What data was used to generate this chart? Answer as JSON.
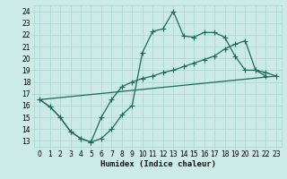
{
  "xlabel": "Humidex (Indice chaleur)",
  "bg_color": "#cceae6",
  "grid_color": "#a8d4d0",
  "line_color": "#1a6b5a",
  "xlim": [
    -0.5,
    23.5
  ],
  "ylim": [
    12.5,
    24.5
  ],
  "xticks": [
    0,
    1,
    2,
    3,
    4,
    5,
    6,
    7,
    8,
    9,
    10,
    11,
    12,
    13,
    14,
    15,
    16,
    17,
    18,
    19,
    20,
    21,
    22,
    23
  ],
  "yticks": [
    13,
    14,
    15,
    16,
    17,
    18,
    19,
    20,
    21,
    22,
    23,
    24
  ],
  "line1_x": [
    0,
    1,
    2,
    3,
    4,
    5,
    6,
    7,
    8,
    9,
    10,
    11,
    12,
    13,
    14,
    15,
    16,
    17,
    18,
    19,
    20,
    21,
    22
  ],
  "line1_y": [
    16.5,
    15.9,
    15.0,
    13.8,
    13.2,
    12.9,
    13.2,
    14.0,
    15.2,
    16.0,
    20.5,
    22.3,
    22.5,
    24.0,
    21.9,
    21.8,
    22.2,
    22.2,
    21.8,
    20.2,
    19.0,
    19.0,
    18.5
  ],
  "line2_x": [
    0,
    1,
    2,
    3,
    4,
    5,
    6,
    7,
    8,
    9,
    10,
    11,
    12,
    13,
    14,
    15,
    16,
    17,
    18,
    19,
    20,
    21,
    22,
    23
  ],
  "line2_y": [
    16.5,
    15.9,
    15.0,
    13.8,
    13.2,
    12.9,
    15.0,
    16.5,
    17.6,
    18.0,
    18.3,
    18.5,
    18.8,
    19.0,
    19.3,
    19.6,
    19.9,
    20.2,
    20.8,
    21.2,
    21.5,
    19.0,
    18.8,
    18.5
  ],
  "line3_x": [
    0,
    23
  ],
  "line3_y": [
    16.5,
    18.5
  ],
  "marker_size": 2.5,
  "line_width": 0.9,
  "font_size_label": 6.5,
  "tick_font_size": 5.5
}
